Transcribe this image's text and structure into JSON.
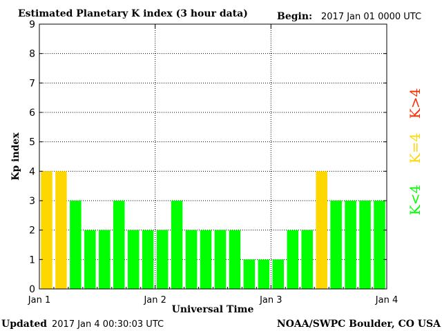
{
  "header": {
    "title": "Estimated Planetary K index (3 hour data)",
    "begin_label": "Begin:",
    "begin_value": "2017 Jan 01 0000 UTC"
  },
  "footer": {
    "updated_label": "Updated",
    "updated_value": "2017 Jan  4 00:30:03 UTC",
    "source": "NOAA/SWPC Boulder, CO USA"
  },
  "legend": {
    "red": "K>4",
    "yellow": "K=4",
    "green": "K<4"
  },
  "colors": {
    "green": "#00ff00",
    "yellow": "#ffd700",
    "red": "#ff2a00"
  },
  "chart_data": {
    "type": "bar",
    "title": "Estimated Planetary K index (3 hour data)",
    "xlabel": "Universal Time",
    "ylabel": "Kp index",
    "ylim": [
      0,
      9
    ],
    "yticks": [
      "0",
      "1",
      "2",
      "3",
      "4",
      "5",
      "6",
      "7",
      "8",
      "9"
    ],
    "xtick_labels": [
      "Jan 1",
      "Jan 2",
      "Jan 3",
      "Jan 4"
    ],
    "grid": true,
    "values": [
      4,
      4,
      3,
      2,
      2,
      3,
      2,
      2,
      2,
      3,
      2,
      2,
      2,
      2,
      1,
      1,
      1,
      2,
      2,
      4,
      3,
      3,
      3,
      3
    ]
  }
}
